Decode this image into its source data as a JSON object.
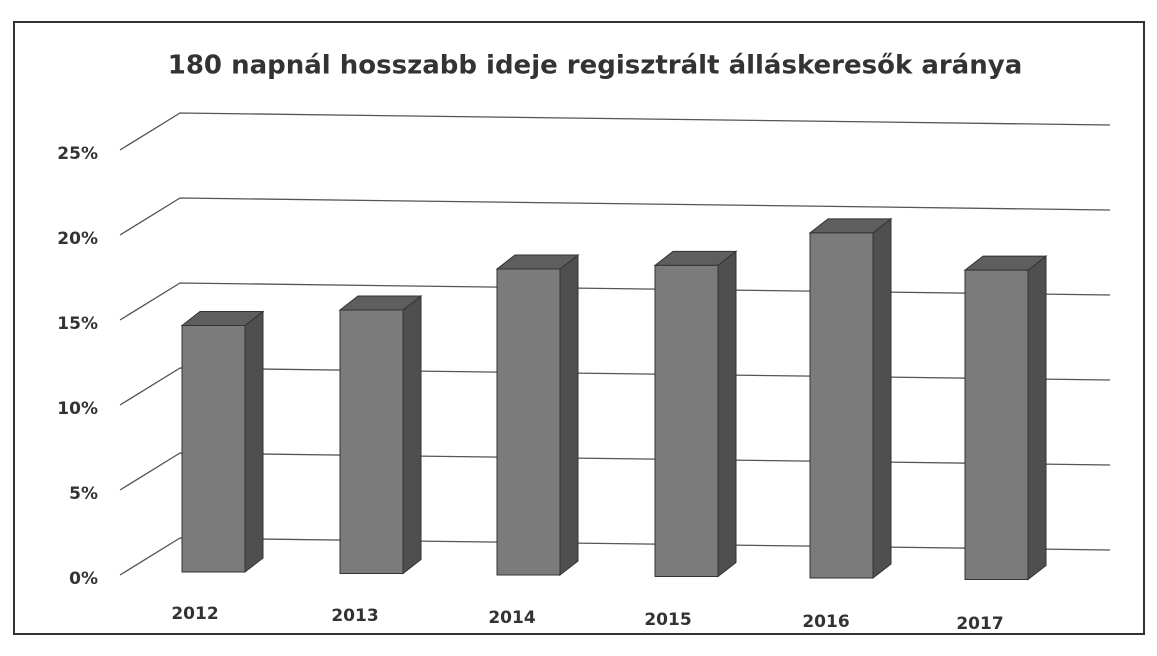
{
  "chart_data": {
    "type": "bar3d",
    "title": "180 napnál hosszabb ideje regisztrált álláskeresők aránya",
    "categories": [
      "2012",
      "2013",
      "2014",
      "2015",
      "2016",
      "2017"
    ],
    "values": [
      14.5,
      15.5,
      18,
      18.3,
      20.3,
      18.2
    ],
    "color": "#7b7b7b",
    "ylim": [
      0,
      25
    ],
    "yticks": [
      {
        "value": 0,
        "label": "0%"
      },
      {
        "value": 5,
        "label": "5%"
      },
      {
        "value": 10,
        "label": "10%"
      },
      {
        "value": 15,
        "label": "15%"
      },
      {
        "value": 20,
        "label": "20%"
      },
      {
        "value": 25,
        "label": "25%"
      }
    ],
    "grid": true
  }
}
